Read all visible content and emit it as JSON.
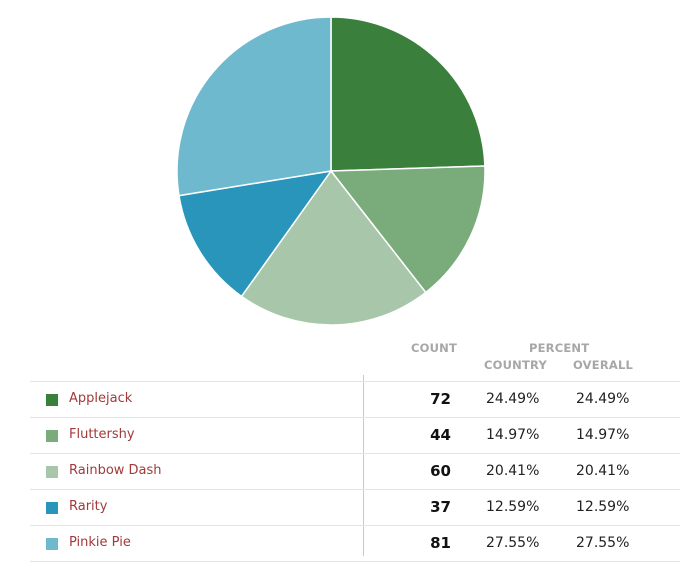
{
  "chart_data": {
    "type": "pie",
    "categories": [
      "Applejack",
      "Fluttershy",
      "Rainbow Dash",
      "Rarity",
      "Pinkie Pie"
    ],
    "values": [
      72,
      44,
      60,
      37,
      81
    ],
    "colors": [
      "#3a7f3c",
      "#7aab7b",
      "#a8c6a9",
      "#2a95ba",
      "#6fb9cf"
    ],
    "percent_country": [
      "24.49%",
      "14.97%",
      "20.41%",
      "12.59%",
      "27.55%"
    ],
    "percent_overall": [
      "24.49%",
      "14.97%",
      "20.41%",
      "12.59%",
      "27.55%"
    ],
    "start_angle": "12 o'clock, clockwise"
  },
  "table": {
    "header_count": "COUNT",
    "header_percent": "PERCENT",
    "header_country": "COUNTRY",
    "header_overall": "OVERALL"
  }
}
